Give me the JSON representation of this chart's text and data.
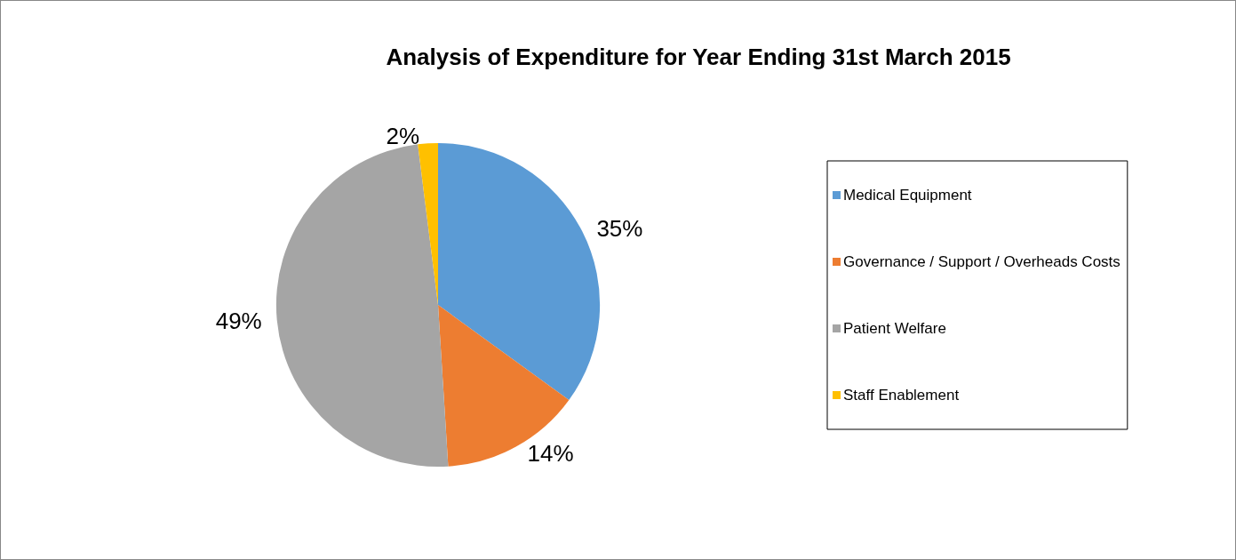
{
  "chart_data": {
    "type": "pie",
    "title": "Analysis of Expenditure for Year Ending 31st March 2015",
    "categories": [
      "Medical Equipment",
      "Governance / Support / Overheads Costs",
      "Patient Welfare",
      "Staff Enablement"
    ],
    "values": [
      35,
      14,
      49,
      2
    ],
    "colors": [
      "#5b9bd5",
      "#ed7d31",
      "#a5a5a5",
      "#ffc000"
    ],
    "value_labels": [
      "35%",
      "14%",
      "49%",
      "2%"
    ],
    "legend": "right"
  }
}
